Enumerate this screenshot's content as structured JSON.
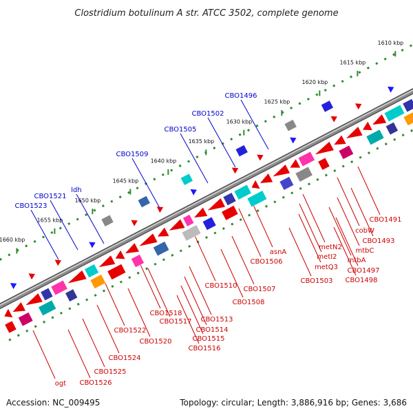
{
  "title": "Clostridium botulinum A str. ATCC 3502, complete genome",
  "footer": {
    "accession": "Accession: NC_009495",
    "topology": "Topology: circular; Length: 3,886,916 bp; Genes: 3,686"
  },
  "colors": {
    "backbone": "#8c8c8c",
    "tick": "#2e8b2e",
    "forward_label": "#0000cc",
    "reverse_label": "#cc0000",
    "arrow_forward": "#1a1aff",
    "arrow_reverse": "#e60000"
  },
  "scale_ticks": [
    {
      "label": "1610 kbp"
    },
    {
      "label": "1615 kbp"
    },
    {
      "label": "1620 kbp"
    },
    {
      "label": "1625 kbp"
    },
    {
      "label": "1630 kbp"
    },
    {
      "label": "1635 kbp"
    },
    {
      "label": "1640 kbp"
    },
    {
      "label": "1645 kbp"
    },
    {
      "label": "1650 kbp"
    },
    {
      "label": "1655 kbp"
    },
    {
      "label": "1660 kbp"
    }
  ],
  "forward_labels": [
    "CBO1496",
    "CBO1502",
    "CBO1505",
    "CBO1509",
    "ldh",
    "CBO1521",
    "CBO1523"
  ],
  "reverse_labels": [
    "CBO1491",
    "cobW",
    "CBO1493",
    "mtbC",
    "mtbA",
    "CBO1497",
    "CBO1498",
    "metN2",
    "metI2",
    "metQ3",
    "CBO1503",
    "asnA",
    "CBO1506",
    "CBO1507",
    "CBO1508",
    "CBO1510",
    "CBO1513",
    "CBO1514",
    "CBO1515",
    "CBO1516",
    "CBO1517",
    "CBO1518",
    "CBO1520",
    "CBO1522",
    "CBO1524",
    "CBO1525",
    "CBO1526",
    "ogt"
  ]
}
